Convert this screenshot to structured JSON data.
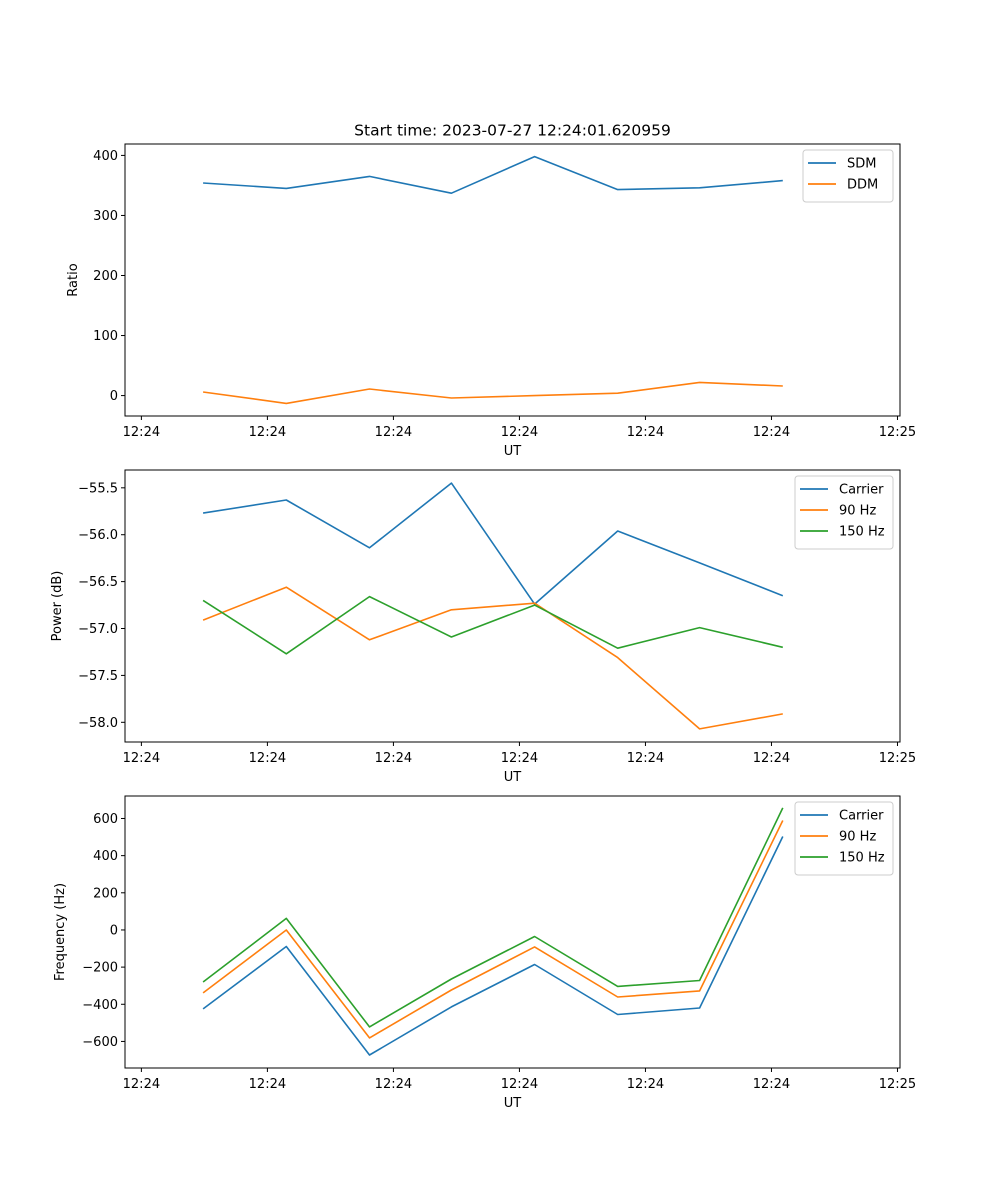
{
  "figure": {
    "title": "Start time: 2023-07-27 12:24:01.620959"
  },
  "chart_data": [
    {
      "type": "line",
      "title": "Start time: 2023-07-27 12:24:01.620959",
      "xlabel": "UT",
      "ylabel": "Ratio",
      "x_units": "seconds after 12:24:00",
      "x": [
        4.9,
        11.5,
        18.1,
        24.6,
        31.2,
        37.8,
        44.3,
        50.9
      ],
      "xlim": [
        -1.3,
        60.2
      ],
      "xticks": [
        0,
        10,
        20,
        30,
        40,
        50,
        60
      ],
      "xtick_labels": [
        "12:24",
        "12:24",
        "12:24",
        "12:24",
        "12:24",
        "12:24",
        "12:25"
      ],
      "ylim": [
        -34,
        419
      ],
      "yticks": [
        0,
        100,
        200,
        300,
        400
      ],
      "ytick_labels": [
        "0",
        "100",
        "200",
        "300",
        "400"
      ],
      "grid": false,
      "legend_position": "top-right",
      "series": [
        {
          "name": "SDM",
          "color": "#1f77b4",
          "values": [
            354,
            345,
            365,
            337,
            398,
            343,
            346,
            358
          ]
        },
        {
          "name": "DDM",
          "color": "#ff7f0e",
          "values": [
            6,
            -13,
            11,
            -4,
            0,
            4,
            22,
            16
          ]
        }
      ]
    },
    {
      "type": "line",
      "title": "",
      "xlabel": "UT",
      "ylabel": "Power (dB)",
      "x_units": "seconds after 12:24:00",
      "x": [
        4.9,
        11.5,
        18.1,
        24.6,
        31.2,
        37.8,
        44.3,
        50.9
      ],
      "xlim": [
        -1.3,
        60.2
      ],
      "xticks": [
        0,
        10,
        20,
        30,
        40,
        50,
        60
      ],
      "xtick_labels": [
        "12:24",
        "12:24",
        "12:24",
        "12:24",
        "12:24",
        "12:24",
        "12:25"
      ],
      "ylim": [
        -58.21,
        -55.31
      ],
      "yticks": [
        -58.0,
        -57.5,
        -57.0,
        -56.5,
        -56.0,
        -55.5
      ],
      "ytick_labels": [
        "−58.0",
        "−57.5",
        "−57.0",
        "−56.5",
        "−56.0",
        "−55.5"
      ],
      "grid": false,
      "legend_position": "top-right",
      "series": [
        {
          "name": "Carrier",
          "color": "#1f77b4",
          "values": [
            -55.77,
            -55.63,
            -56.14,
            -55.45,
            -56.74,
            -55.96,
            -56.3,
            -56.65
          ]
        },
        {
          "name": "90 Hz",
          "color": "#ff7f0e",
          "values": [
            -56.91,
            -56.56,
            -57.12,
            -56.8,
            -56.73,
            -57.31,
            -58.07,
            -57.91
          ]
        },
        {
          "name": "150 Hz",
          "color": "#2ca02c",
          "values": [
            -56.7,
            -57.27,
            -56.66,
            -57.09,
            -56.75,
            -57.21,
            -56.99,
            -57.2
          ]
        }
      ]
    },
    {
      "type": "line",
      "title": "",
      "xlabel": "UT",
      "ylabel": "Frequency (Hz)",
      "x_units": "seconds after 12:24:00",
      "x": [
        4.9,
        11.5,
        18.1,
        24.6,
        31.2,
        37.8,
        44.3,
        50.9
      ],
      "xlim": [
        -1.3,
        60.2
      ],
      "xticks": [
        0,
        10,
        20,
        30,
        40,
        50,
        60
      ],
      "xtick_labels": [
        "12:24",
        "12:24",
        "12:24",
        "12:24",
        "12:24",
        "12:24",
        "12:25"
      ],
      "ylim": [
        -743,
        721
      ],
      "yticks": [
        -600,
        -400,
        -200,
        0,
        200,
        400,
        600
      ],
      "ytick_labels": [
        "−600",
        "−400",
        "−200",
        "0",
        "200",
        "400",
        "600"
      ],
      "grid": false,
      "legend_position": "top-right",
      "series": [
        {
          "name": "Carrier",
          "color": "#1f77b4",
          "values": [
            -425,
            -89,
            -673,
            -414,
            -186,
            -455,
            -420,
            503
          ]
        },
        {
          "name": "90 Hz",
          "color": "#ff7f0e",
          "values": [
            -339,
            0,
            -581,
            -323,
            -91,
            -361,
            -328,
            589
          ]
        },
        {
          "name": "150 Hz",
          "color": "#2ca02c",
          "values": [
            -280,
            62,
            -522,
            -264,
            -35,
            -304,
            -272,
            657
          ]
        }
      ]
    }
  ]
}
